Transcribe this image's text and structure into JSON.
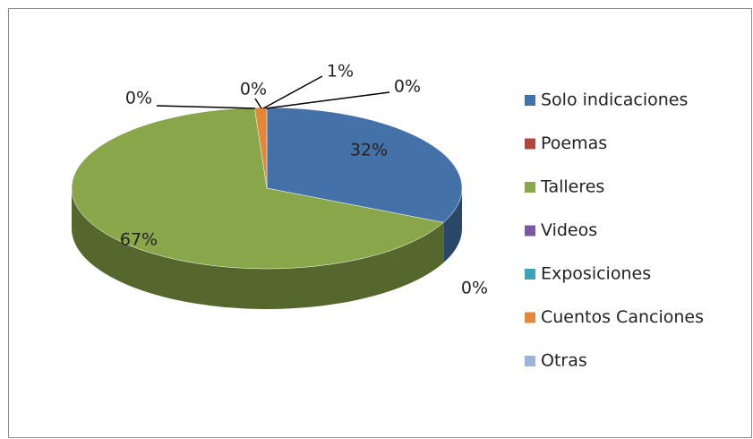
{
  "chart_data": {
    "type": "pie",
    "categories": [
      "Solo indicaciones",
      "Poemas",
      "Talleres",
      "Videos",
      "Exposiciones",
      "Cuentos Canciones",
      "Otras"
    ],
    "values": [
      32,
      0,
      67,
      0,
      0,
      1,
      0
    ],
    "value_labels": [
      "32%",
      "0%",
      "67%",
      "0%",
      "0%",
      "1%",
      "0%"
    ],
    "colors": [
      "#4472a8",
      "#b24540",
      "#8aa64a",
      "#7a5a9e",
      "#3fa3b8",
      "#e5873a",
      "#9db4d8"
    ],
    "legend": "right"
  }
}
